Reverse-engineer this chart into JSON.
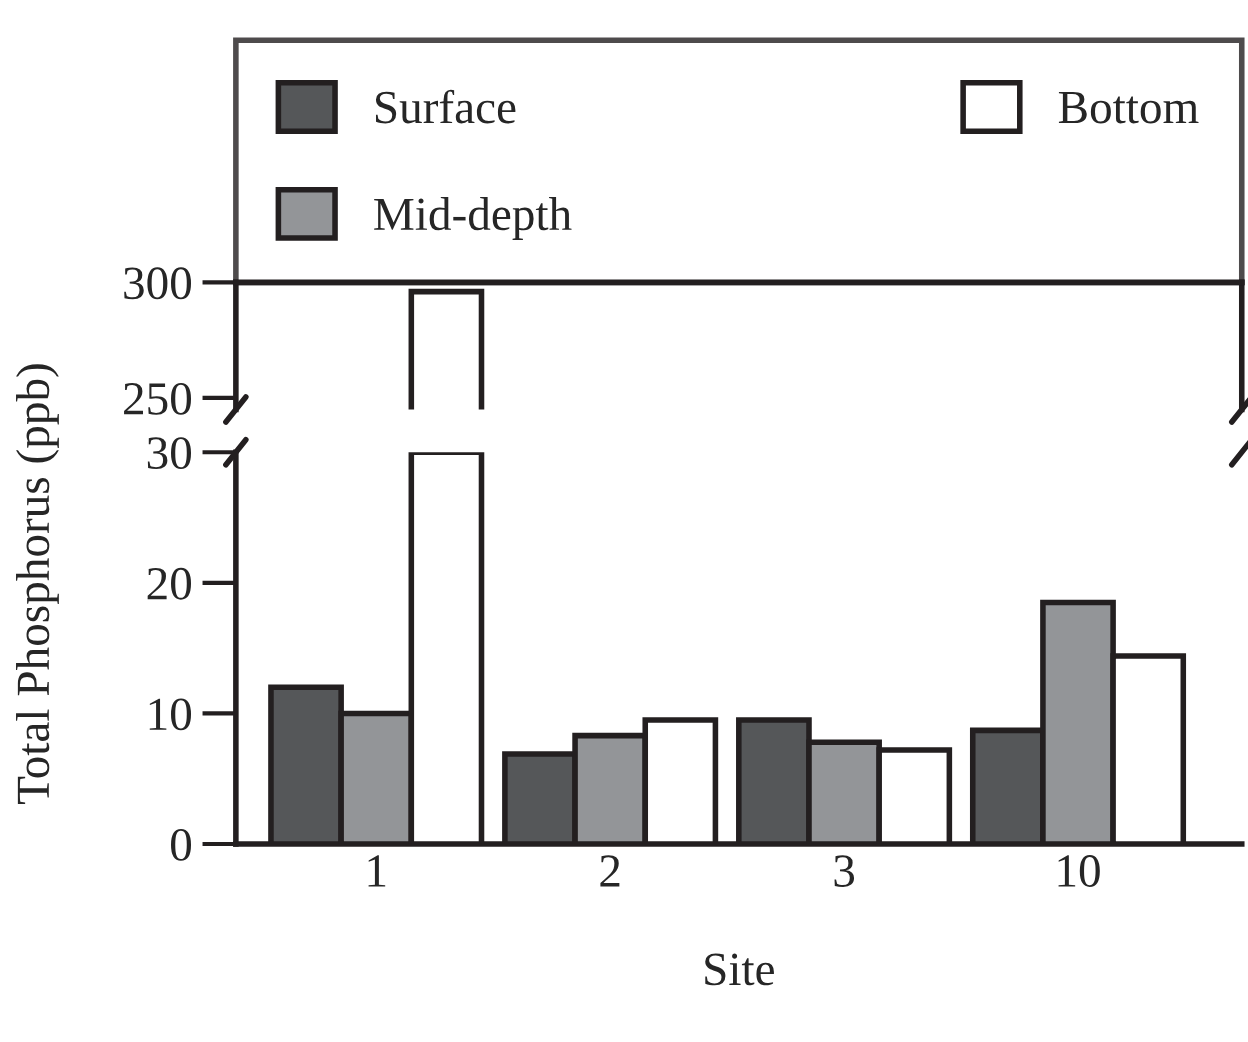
{
  "chart_data": [
    {
      "type": "bar",
      "categories": [
        "1",
        "2",
        "3",
        "10"
      ],
      "ylim": [
        245,
        300
      ],
      "yticks": [
        250,
        300
      ],
      "tick_labels": "y",
      "legend": "top",
      "grid": false,
      "series": [
        {
          "name": "Surface",
          "color": "#555759",
          "values": [
            null,
            null,
            null,
            null
          ]
        },
        {
          "name": "Mid-depth",
          "color": "#939598",
          "values": [
            null,
            null,
            null,
            null
          ]
        },
        {
          "name": "Bottom",
          "color": "#ffffff",
          "values": [
            296,
            null,
            null,
            null
          ]
        }
      ]
    },
    {
      "type": "bar",
      "categories": [
        "1",
        "2",
        "3",
        "10"
      ],
      "ylim": [
        0,
        30
      ],
      "yticks": [
        0,
        10,
        20,
        30
      ],
      "xlabel": "Site",
      "ylabel": "Total Phosphorus (ppb)",
      "grid": false,
      "series": [
        {
          "color": "#555759",
          "values": [
            12,
            6.9,
            9.5,
            8.7
          ]
        },
        {
          "color": "#939598",
          "values": [
            10,
            8.3,
            7.8,
            18.5
          ]
        },
        {
          "color": "#ffffff",
          "values": [
            30,
            9.5,
            7.2,
            14.4
          ]
        }
      ]
    }
  ]
}
